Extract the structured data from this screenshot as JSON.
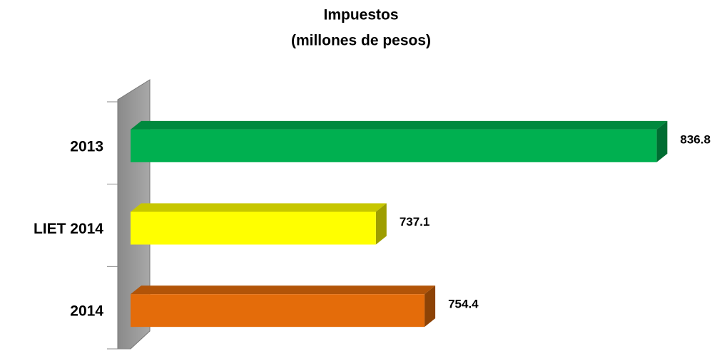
{
  "chart_data": {
    "type": "bar3d_horizontal",
    "title": "Impuestos",
    "subtitle": "(millones de pesos)",
    "categories": [
      "2013",
      "LIET 2014",
      "2014"
    ],
    "values": [
      836.8,
      737.1,
      754.4
    ],
    "colors": [
      "#00b050",
      "#ffff00",
      "#e46c0a"
    ],
    "xlim": [
      650,
      840
    ]
  }
}
